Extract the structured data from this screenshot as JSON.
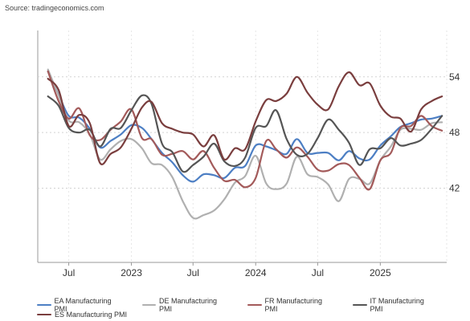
{
  "source": "Source: tradingeconomics.com",
  "chart_data": {
    "type": "line",
    "title": "",
    "xlabel": "",
    "ylabel": "",
    "x_ticks": [
      "Jul",
      "2023",
      "Jul",
      "2024",
      "Jul",
      "2025"
    ],
    "y_ticks": [
      "54",
      "48",
      "42"
    ],
    "ylim": [
      34,
      59
    ],
    "grid": "horizontal dotted",
    "legend_position": "bottom",
    "x": [
      "2022-05",
      "2022-06",
      "2022-07",
      "2022-08",
      "2022-09",
      "2022-10",
      "2022-11",
      "2022-12",
      "2023-01",
      "2023-02",
      "2023-03",
      "2023-04",
      "2023-05",
      "2023-06",
      "2023-07",
      "2023-08",
      "2023-09",
      "2023-10",
      "2023-11",
      "2023-12",
      "2024-01",
      "2024-02",
      "2024-03",
      "2024-04",
      "2024-05",
      "2024-06",
      "2024-07",
      "2024-08",
      "2024-09",
      "2024-10",
      "2024-11",
      "2024-12",
      "2025-01",
      "2025-02",
      "2025-03",
      "2025-04",
      "2025-05",
      "2025-06",
      "2025-07"
    ],
    "series": [
      {
        "name": "EA Manufacturing PMI",
        "color": "#4d7fc4",
        "values": [
          54.6,
          52.1,
          49.8,
          49.6,
          48.4,
          46.4,
          47.1,
          47.8,
          48.8,
          48.5,
          47.3,
          45.8,
          44.8,
          43.4,
          42.7,
          43.5,
          43.4,
          43.1,
          44.2,
          44.4,
          46.6,
          46.5,
          46.1,
          45.7,
          47.3,
          45.8,
          45.8,
          45.8,
          45.0,
          46.0,
          45.2,
          45.1,
          46.6,
          47.6,
          48.6,
          49.0,
          49.4,
          49.5,
          49.8
        ]
      },
      {
        "name": "DE Manufacturing PMI",
        "color": "#b0b0b0",
        "values": [
          54.8,
          52.0,
          49.3,
          49.1,
          47.8,
          45.1,
          46.2,
          47.1,
          47.3,
          46.3,
          44.7,
          44.5,
          43.2,
          40.6,
          38.8,
          39.1,
          39.6,
          40.8,
          42.6,
          43.3,
          45.5,
          42.5,
          41.9,
          42.5,
          45.4,
          43.5,
          43.2,
          42.4,
          40.6,
          43.0,
          43.0,
          42.5,
          45.0,
          46.5,
          48.3,
          48.4,
          48.3,
          49.0,
          49.1
        ]
      },
      {
        "name": "FR Manufacturing PMI",
        "color": "#a35a5a",
        "values": [
          54.6,
          51.4,
          49.5,
          50.6,
          47.7,
          47.2,
          48.3,
          49.2,
          50.5,
          47.4,
          47.3,
          45.6,
          45.7,
          46.0,
          45.1,
          46.0,
          44.2,
          42.8,
          42.9,
          42.1,
          43.1,
          47.1,
          46.2,
          45.3,
          46.4,
          45.4,
          44.0,
          43.9,
          44.6,
          44.5,
          43.1,
          41.9,
          45.0,
          45.8,
          48.5,
          48.7,
          49.8,
          48.7,
          48.2
        ]
      },
      {
        "name": "IT Manufacturing PMI",
        "color": "#555555",
        "values": [
          51.9,
          50.9,
          48.5,
          48.0,
          48.3,
          46.5,
          48.4,
          48.5,
          50.4,
          52.0,
          51.1,
          46.8,
          45.9,
          43.8,
          44.5,
          45.4,
          46.8,
          44.9,
          44.4,
          45.3,
          48.5,
          48.7,
          50.4,
          47.3,
          45.6,
          45.7,
          47.4,
          49.4,
          48.3,
          46.9,
          44.5,
          46.2,
          46.3,
          47.4,
          46.6,
          46.8,
          47.2,
          48.4,
          49.8
        ]
      },
      {
        "name": "ES Manufacturing PMI",
        "color": "#7a3e3e",
        "values": [
          53.8,
          52.6,
          48.7,
          49.9,
          49.0,
          44.7,
          45.7,
          46.4,
          48.4,
          50.7,
          51.3,
          49.0,
          48.4,
          48.0,
          47.8,
          46.5,
          47.7,
          45.1,
          46.3,
          46.2,
          49.2,
          51.5,
          51.4,
          52.2,
          54.0,
          52.3,
          51.0,
          50.5,
          53.0,
          54.5,
          53.1,
          53.3,
          50.9,
          49.7,
          49.5,
          48.1,
          50.5,
          51.4,
          51.9
        ]
      }
    ]
  }
}
